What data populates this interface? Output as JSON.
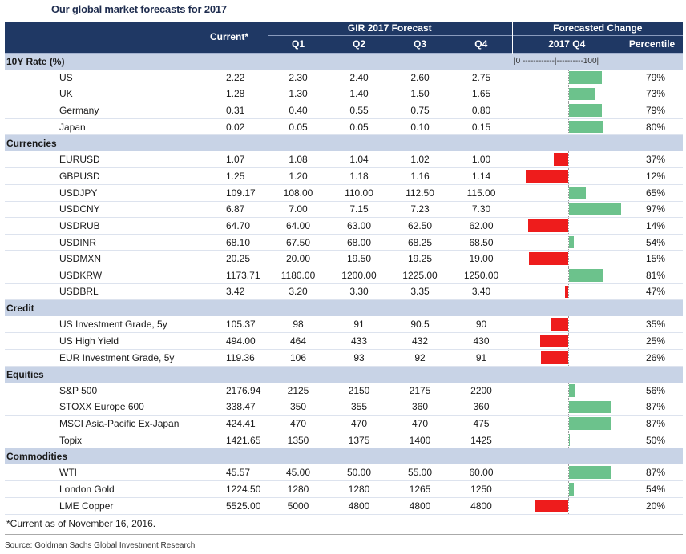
{
  "title": "Our global market forecasts for 2017",
  "header": {
    "current": "Current*",
    "forecast_group": "GIR 2017 Forecast",
    "change_group": "Forecasted Change",
    "q1": "Q1",
    "q2": "Q2",
    "q3": "Q3",
    "q4": "Q4",
    "change_q4": "2017 Q4",
    "percentile": "Percentile"
  },
  "scale_label": "|0 ------------|----------100|",
  "sections": [
    {
      "name": "10Y Rate (%)",
      "show_scale": true,
      "rows": [
        {
          "label": "US",
          "current": "2.22",
          "q1": "2.30",
          "q2": "2.40",
          "q3": "2.60",
          "q4": "2.75",
          "percentile": "79%",
          "pct_value": 79
        },
        {
          "label": "UK",
          "current": "1.28",
          "q1": "1.30",
          "q2": "1.40",
          "q3": "1.50",
          "q4": "1.65",
          "percentile": "73%",
          "pct_value": 73
        },
        {
          "label": "Germany",
          "current": "0.31",
          "q1": "0.40",
          "q2": "0.55",
          "q3": "0.75",
          "q4": "0.80",
          "percentile": "79%",
          "pct_value": 79
        },
        {
          "label": "Japan",
          "current": "0.02",
          "q1": "0.05",
          "q2": "0.05",
          "q3": "0.10",
          "q4": "0.15",
          "percentile": "80%",
          "pct_value": 80
        }
      ]
    },
    {
      "name": "Currencies",
      "show_scale": false,
      "rows": [
        {
          "label": "EURUSD",
          "current": "1.07",
          "q1": "1.08",
          "q2": "1.04",
          "q3": "1.02",
          "q4": "1.00",
          "percentile": "37%",
          "pct_value": 37
        },
        {
          "label": "GBPUSD",
          "current": "1.25",
          "q1": "1.20",
          "q2": "1.18",
          "q3": "1.16",
          "q4": "1.14",
          "percentile": "12%",
          "pct_value": 12
        },
        {
          "label": "USDJPY",
          "current": "109.17",
          "q1": "108.00",
          "q2": "110.00",
          "q3": "112.50",
          "q4": "115.00",
          "percentile": "65%",
          "pct_value": 65
        },
        {
          "label": "USDCNY",
          "current": "6.87",
          "q1": "7.00",
          "q2": "7.15",
          "q3": "7.23",
          "q4": "7.30",
          "percentile": "97%",
          "pct_value": 97
        },
        {
          "label": "USDRUB",
          "current": "64.70",
          "q1": "64.00",
          "q2": "63.00",
          "q3": "62.50",
          "q4": "62.00",
          "percentile": "14%",
          "pct_value": 14
        },
        {
          "label": "USDINR",
          "current": "68.10",
          "q1": "67.50",
          "q2": "68.00",
          "q3": "68.25",
          "q4": "68.50",
          "percentile": "54%",
          "pct_value": 54
        },
        {
          "label": "USDMXN",
          "current": "20.25",
          "q1": "20.00",
          "q2": "19.50",
          "q3": "19.25",
          "q4": "19.00",
          "percentile": "15%",
          "pct_value": 15
        },
        {
          "label": "USDKRW",
          "current": "1173.71",
          "q1": "1180.00",
          "q2": "1200.00",
          "q3": "1225.00",
          "q4": "1250.00",
          "percentile": "81%",
          "pct_value": 81
        },
        {
          "label": "USDBRL",
          "current": "3.42",
          "q1": "3.20",
          "q2": "3.30",
          "q3": "3.35",
          "q4": "3.40",
          "percentile": "47%",
          "pct_value": 47
        }
      ]
    },
    {
      "name": "Credit",
      "show_scale": false,
      "rows": [
        {
          "label": "US Investment Grade, 5y",
          "current": "105.37",
          "q1": "98",
          "q2": "91",
          "q3": "90.5",
          "q4": "90",
          "percentile": "35%",
          "pct_value": 35
        },
        {
          "label": "US High Yield",
          "current": "494.00",
          "q1": "464",
          "q2": "433",
          "q3": "432",
          "q4": "430",
          "percentile": "25%",
          "pct_value": 25
        },
        {
          "label": "EUR Investment Grade, 5y",
          "current": "119.36",
          "q1": "106",
          "q2": "93",
          "q3": "92",
          "q4": "91",
          "percentile": "26%",
          "pct_value": 26
        }
      ]
    },
    {
      "name": "Equities",
      "show_scale": false,
      "rows": [
        {
          "label": "S&P 500",
          "current": "2176.94",
          "q1": "2125",
          "q2": "2150",
          "q3": "2175",
          "q4": "2200",
          "percentile": "56%",
          "pct_value": 56
        },
        {
          "label": "STOXX Europe 600",
          "current": "338.47",
          "q1": "350",
          "q2": "355",
          "q3": "360",
          "q4": "360",
          "percentile": "87%",
          "pct_value": 87
        },
        {
          "label": "MSCI Asia-Pacific Ex-Japan",
          "current": "424.41",
          "q1": "470",
          "q2": "470",
          "q3": "470",
          "q4": "475",
          "percentile": "87%",
          "pct_value": 87
        },
        {
          "label": "Topix",
          "current": "1421.65",
          "q1": "1350",
          "q2": "1375",
          "q3": "1400",
          "q4": "1425",
          "percentile": "50%",
          "pct_value": 50
        }
      ]
    },
    {
      "name": "Commodities",
      "show_scale": false,
      "rows": [
        {
          "label": "WTI",
          "current": "45.57",
          "q1": "45.00",
          "q2": "50.00",
          "q3": "55.00",
          "q4": "60.00",
          "percentile": "87%",
          "pct_value": 87
        },
        {
          "label": "London Gold",
          "current": "1224.50",
          "q1": "1280",
          "q2": "1280",
          "q3": "1265",
          "q4": "1250",
          "percentile": "54%",
          "pct_value": 54
        },
        {
          "label": "LME Copper",
          "current": "5525.00",
          "q1": "5000",
          "q2": "4800",
          "q3": "4800",
          "q4": "4800",
          "percentile": "20%",
          "pct_value": 20
        }
      ]
    }
  ],
  "colors": {
    "header_bg": "#1f3864",
    "section_bg": "#c8d3e6",
    "bar_up": "#6cc28c",
    "bar_down": "#ee1c1c"
  },
  "footnote": "*Current as of November 16, 2016.",
  "source": "Source: Goldman Sachs Global Investment Research"
}
